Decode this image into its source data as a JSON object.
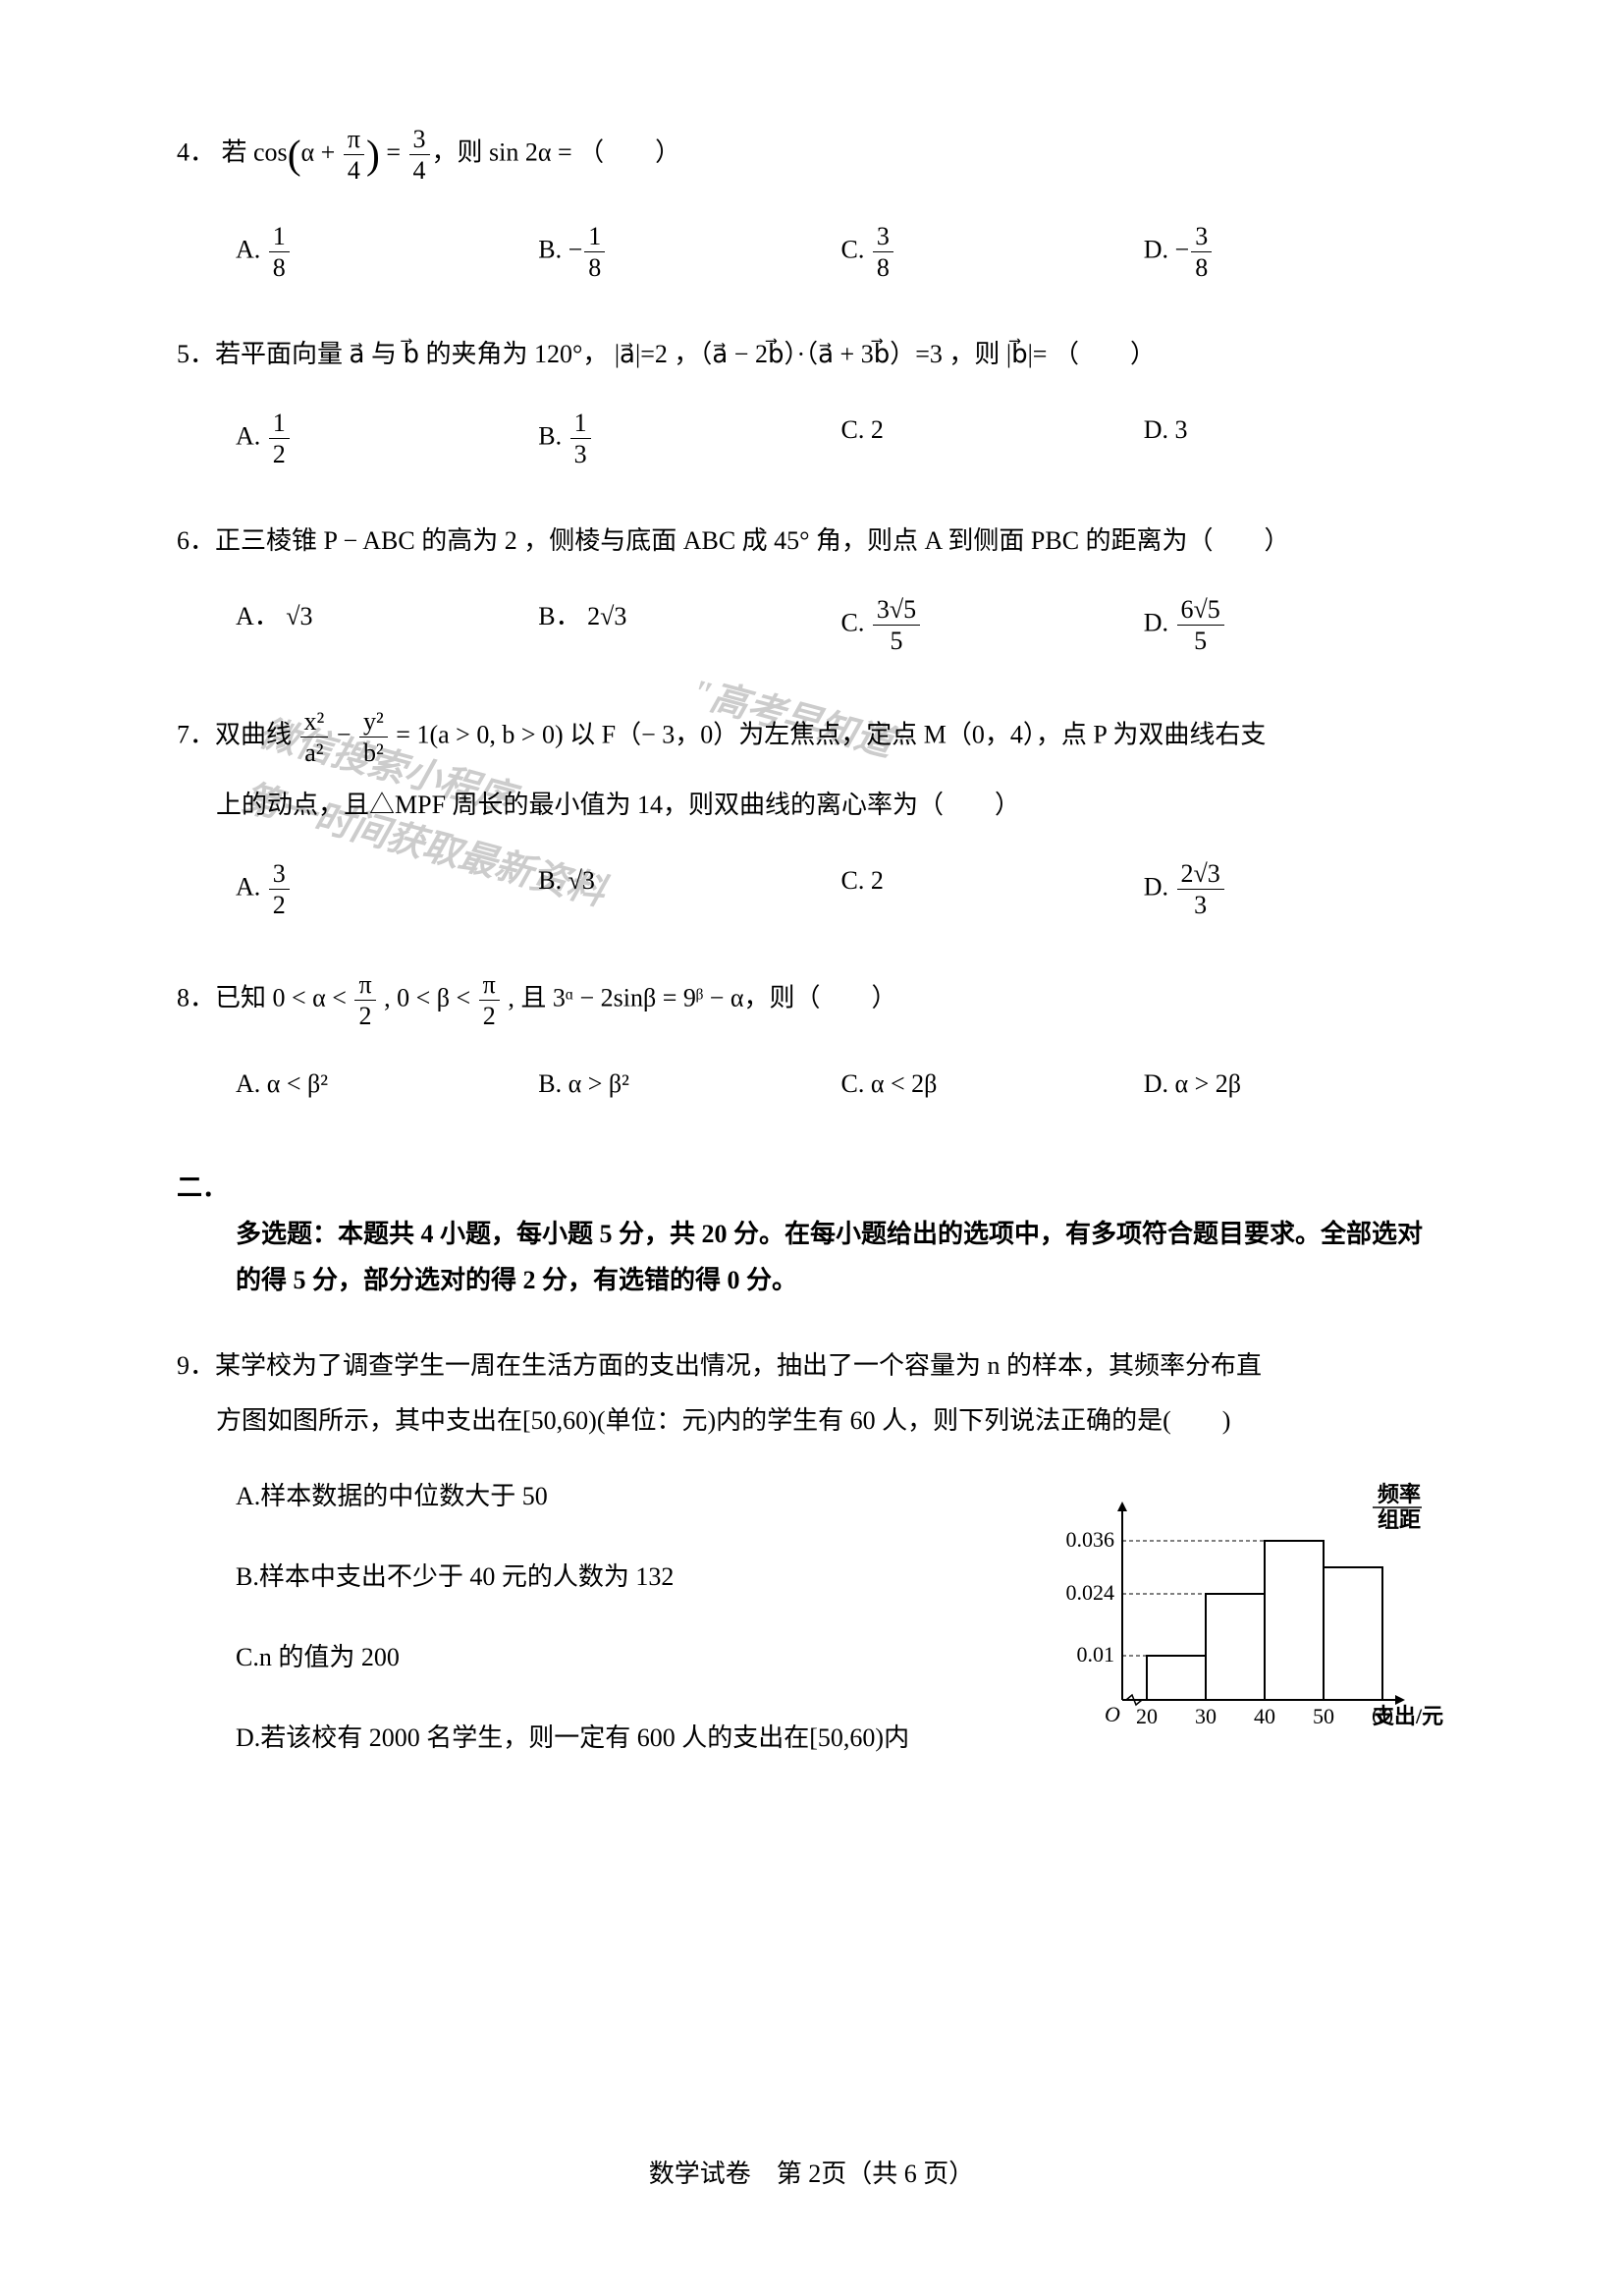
{
  "questions": {
    "q4": {
      "number": "4．",
      "stem_prefix": "若 cos",
      "stem_mid": " = ",
      "stem_suffix": "，则 sin 2α = （　　）",
      "frac_arg_num": "π",
      "frac_arg_den": "4",
      "frac_val_num": "3",
      "frac_val_den": "4",
      "options": {
        "A_label": "A.",
        "A_num": "1",
        "A_den": "8",
        "B_label": "B.",
        "B_num": "1",
        "B_den": "8",
        "C_label": "C.",
        "C_num": "3",
        "C_den": "8",
        "D_label": "D.",
        "D_num": "3",
        "D_den": "8"
      }
    },
    "q5": {
      "number": "5．",
      "stem": "若平面向量 a⃗ 与 b⃗ 的夹角为 120°， |a⃗|=2 ，（a⃗ − 2b⃗）·（a⃗ + 3b⃗）=3 ，则 |b⃗|= （　　）",
      "options": {
        "A_label": "A.",
        "A_num": "1",
        "A_den": "2",
        "B_label": "B.",
        "B_num": "1",
        "B_den": "3",
        "C": "C. 2",
        "D": "D. 3"
      }
    },
    "q6": {
      "number": "6．",
      "stem": "正三棱锥 P − ABC 的高为 2 ，侧棱与底面 ABC 成 45° 角，则点 A 到侧面 PBC 的距离为（　　）",
      "options": {
        "A_label": "A．",
        "A_val": "√3",
        "B_label": "B．",
        "B_val": "2√3",
        "C_label": "C.",
        "C_num": "3√5",
        "C_den": "5",
        "D_label": "D.",
        "D_num": "6√5",
        "D_den": "5"
      }
    },
    "q7": {
      "number": "7．",
      "stem_p1": "双曲线 ",
      "frac1_num": "x²",
      "frac1_den": "a²",
      "stem_p2": " − ",
      "frac2_num": "y²",
      "frac2_den": "b²",
      "stem_p3": " = 1(a > 0, b > 0) 以 F（− 3，0）为左焦点，定点 M（0，4），点 P 为双曲线右支",
      "stem_line2": "上的动点，且△MPF 周长的最小值为 14，则双曲线的离心率为（　　）",
      "options": {
        "A_label": "A.",
        "A_num": "3",
        "A_den": "2",
        "B_label": "B.",
        "B_val": "√3",
        "C": "C. 2",
        "D_label": "D.",
        "D_num": "2√3",
        "D_den": "3"
      }
    },
    "q8": {
      "number": "8．",
      "stem_p1": "已知 0 < α < ",
      "frac1_num": "π",
      "frac1_den": "2",
      "stem_p2": " , 0 < β < ",
      "frac2_num": "π",
      "frac2_den": "2",
      "stem_p3": " , 且 3ᵅ − 2sinβ = 9ᵝ − α，则（　　）",
      "options": {
        "A": "A. α < β²",
        "B": "B. α > β²",
        "C": "C. α < 2β",
        "D": "D. α > 2β"
      }
    },
    "section2": {
      "number": "二．",
      "text": "多选题：本题共 4 小题，每小题 5 分，共 20 分。在每小题给出的选项中，有多项符合题目要求。全部选对的得 5 分，部分选对的得 2 分，有选错的得 0 分。"
    },
    "q9": {
      "number": "9．",
      "stem_line1": "某学校为了调查学生一周在生活方面的支出情况，抽出了一个容量为 n 的样本，其频率分布直",
      "stem_line2": "方图如图所示，其中支出在[50,60)(单位：元)内的学生有 60 人，则下列说法正确的是(　　)",
      "options": {
        "A": "A.样本数据的中位数大于 50",
        "B": "B.样本中支出不少于 40 元的人数为 132",
        "C": "C.n 的值为 200",
        "D": "D.若该校有 2000 名学生，则一定有 600 人的支出在[50,60)内"
      }
    }
  },
  "histogram": {
    "ylabel_top": "频率",
    "ylabel_bot": "组距",
    "yticks": [
      "0.036",
      "0.024",
      "0.01"
    ],
    "xticks": [
      "20",
      "30",
      "40",
      "50",
      "60"
    ],
    "xlabel": "支出/元",
    "origin": "O",
    "bars": [
      {
        "x": 0,
        "height": 0.01
      },
      {
        "x": 1,
        "height": 0.024
      },
      {
        "x": 2,
        "height": 0.036
      },
      {
        "x": 3,
        "height": 0.03
      }
    ],
    "bar_color": "#ffffff",
    "bar_border": "#000000",
    "axis_color": "#000000",
    "label_fontsize": 22,
    "ymax": 0.04
  },
  "watermark": {
    "line1": "\"高考早知道\"",
    "line2_a": "微信搜索小程序",
    "line2_b": "第一时间获取最新资料"
  },
  "footer": "数学试卷　第 2页（共 6 页）"
}
